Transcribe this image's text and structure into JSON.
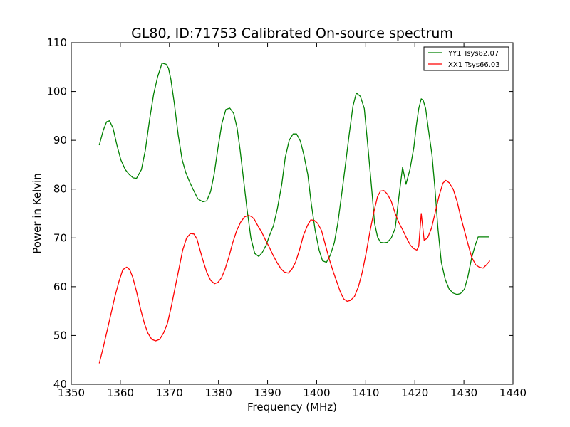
{
  "chart_data": {
    "type": "line",
    "title": "GL80, ID:71753 Calibrated On-source spectrum",
    "xlabel": "Frequency (MHz)",
    "ylabel": "Power in Kelvin",
    "xlim": [
      1350,
      1440
    ],
    "ylim": [
      40,
      110
    ],
    "xticks": [
      1350,
      1360,
      1370,
      1380,
      1390,
      1400,
      1410,
      1420,
      1430,
      1440
    ],
    "yticks": [
      40,
      50,
      60,
      70,
      80,
      90,
      100,
      110
    ],
    "grid": false,
    "legend_position": "top-right",
    "series": [
      {
        "name": "YY1 Tsys82.07",
        "color": "#008000",
        "x": [
          1355.7,
          1356.5,
          1357.2,
          1357.8,
          1358.5,
          1359.3,
          1360.1,
          1361.0,
          1361.8,
          1362.6,
          1363.3,
          1364.3,
          1365.1,
          1366.0,
          1366.8,
          1367.6,
          1368.5,
          1369.3,
          1369.8,
          1370.3,
          1371.0,
          1371.8,
          1372.6,
          1373.3,
          1374.1,
          1374.9,
          1375.8,
          1376.8,
          1377.6,
          1378.4,
          1379.1,
          1379.9,
          1380.7,
          1381.5,
          1382.3,
          1383.1,
          1383.8,
          1384.4,
          1385.1,
          1385.8,
          1386.6,
          1387.4,
          1388.2,
          1388.9,
          1389.7,
          1390.4,
          1391.2,
          1392.0,
          1392.9,
          1393.6,
          1394.4,
          1395.2,
          1395.9,
          1396.7,
          1397.4,
          1398.2,
          1398.9,
          1399.7,
          1400.5,
          1401.2,
          1402.0,
          1402.8,
          1403.6,
          1404.3,
          1405.1,
          1405.8,
          1406.6,
          1407.4,
          1408.1,
          1408.9,
          1409.7,
          1410.5,
          1411.3,
          1411.8,
          1412.4,
          1413.0,
          1413.7,
          1414.4,
          1415.2,
          1416.0,
          1416.7,
          1417.5,
          1418.2,
          1419.0,
          1419.8,
          1420.3,
          1420.8,
          1421.3,
          1421.7,
          1422.2,
          1422.8,
          1423.5,
          1424.1,
          1424.7,
          1425.4,
          1426.2,
          1427.0,
          1427.8,
          1428.6,
          1429.3,
          1430.1,
          1430.8,
          1431.6,
          1432.3,
          1432.9,
          1433.6,
          1434.3,
          1435.1
        ],
        "y": [
          89.0,
          92.0,
          93.8,
          94.0,
          92.5,
          89.0,
          86.0,
          84.0,
          83.0,
          82.3,
          82.2,
          84.0,
          88.0,
          94.5,
          99.5,
          103.0,
          105.8,
          105.6,
          104.8,
          102.5,
          97.5,
          91.0,
          86.0,
          83.5,
          81.5,
          79.8,
          78.0,
          77.4,
          77.6,
          79.5,
          83.0,
          88.5,
          93.5,
          96.3,
          96.6,
          95.5,
          92.5,
          88.0,
          82.0,
          76.0,
          70.0,
          66.8,
          66.2,
          67.0,
          68.5,
          70.5,
          72.5,
          76.0,
          81.0,
          86.5,
          90.0,
          91.3,
          91.3,
          89.8,
          87.0,
          83.0,
          77.0,
          71.5,
          67.5,
          65.3,
          65.0,
          66.5,
          69.0,
          73.0,
          79.0,
          84.5,
          91.0,
          97.0,
          99.7,
          99.0,
          96.5,
          88.0,
          79.0,
          73.0,
          70.2,
          69.1,
          69.0,
          69.1,
          70.0,
          72.0,
          78.0,
          84.5,
          81.0,
          84.0,
          88.5,
          93.0,
          96.5,
          98.5,
          98.2,
          96.5,
          92.0,
          87.0,
          80.0,
          72.0,
          65.0,
          61.5,
          59.5,
          58.7,
          58.4,
          58.6,
          59.5,
          62.0,
          66.0,
          68.5,
          70.2,
          70.2,
          70.2,
          70.2
        ]
      },
      {
        "name": "XX1 Tsys66.03",
        "color": "#ff0000",
        "x": [
          1355.7,
          1356.5,
          1357.3,
          1358.1,
          1358.9,
          1359.7,
          1360.5,
          1361.3,
          1361.9,
          1362.5,
          1363.3,
          1364.1,
          1364.9,
          1365.6,
          1366.4,
          1367.2,
          1368.0,
          1368.8,
          1369.6,
          1370.4,
          1371.2,
          1372.0,
          1372.7,
          1373.5,
          1374.3,
          1375.0,
          1375.6,
          1376.1,
          1376.8,
          1377.6,
          1378.4,
          1379.2,
          1379.9,
          1380.6,
          1381.3,
          1382.1,
          1382.9,
          1383.7,
          1384.5,
          1385.3,
          1386.1,
          1386.7,
          1387.3,
          1388.0,
          1388.8,
          1389.6,
          1390.4,
          1391.1,
          1391.9,
          1392.7,
          1393.4,
          1394.2,
          1394.9,
          1395.7,
          1396.5,
          1397.3,
          1398.1,
          1398.8,
          1399.5,
          1400.2,
          1401.0,
          1401.8,
          1402.6,
          1403.4,
          1404.1,
          1404.8,
          1405.5,
          1406.2,
          1406.9,
          1407.7,
          1408.5,
          1409.3,
          1410.1,
          1410.9,
          1411.7,
          1412.4,
          1413.0,
          1413.7,
          1414.4,
          1415.2,
          1416.0,
          1416.8,
          1417.6,
          1418.3,
          1419.1,
          1419.8,
          1420.4,
          1420.8,
          1421.3,
          1421.9,
          1422.6,
          1423.4,
          1424.1,
          1424.9,
          1425.7,
          1426.3,
          1427.0,
          1427.8,
          1428.6,
          1429.3,
          1430.1,
          1430.9,
          1431.6,
          1432.4,
          1433.1,
          1433.9,
          1434.6,
          1435.3
        ],
        "y": [
          44.3,
          47.5,
          51.0,
          54.5,
          58.0,
          61.0,
          63.5,
          64.0,
          63.5,
          62.0,
          59.0,
          55.5,
          52.5,
          50.5,
          49.2,
          48.9,
          49.2,
          50.5,
          52.5,
          56.0,
          60.0,
          64.0,
          67.5,
          70.0,
          70.9,
          70.8,
          69.8,
          68.0,
          65.5,
          63.0,
          61.3,
          60.6,
          60.9,
          61.8,
          63.5,
          66.0,
          69.0,
          71.5,
          73.2,
          74.3,
          74.6,
          74.4,
          73.8,
          72.5,
          71.2,
          69.5,
          68.0,
          66.5,
          65.0,
          63.7,
          63.0,
          62.8,
          63.5,
          65.0,
          67.5,
          70.5,
          72.5,
          73.7,
          73.6,
          73.0,
          71.5,
          68.5,
          65.5,
          63.0,
          61.0,
          59.0,
          57.5,
          57.0,
          57.2,
          58.0,
          60.0,
          63.0,
          67.0,
          71.5,
          75.5,
          78.5,
          79.6,
          79.7,
          79.0,
          77.5,
          75.0,
          73.0,
          71.5,
          70.0,
          68.5,
          67.8,
          67.5,
          68.3,
          75.0,
          69.5,
          70.0,
          72.0,
          75.0,
          78.5,
          81.2,
          81.8,
          81.3,
          80.0,
          77.5,
          74.5,
          71.5,
          68.5,
          66.0,
          64.5,
          64.0,
          63.8,
          64.5,
          65.3
        ]
      }
    ]
  }
}
